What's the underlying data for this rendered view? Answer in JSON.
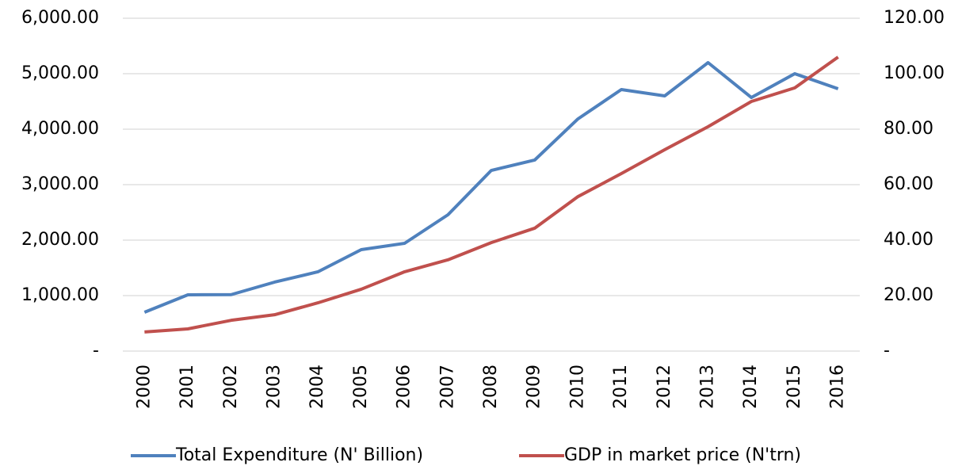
{
  "chart_data": {
    "type": "line",
    "categories": [
      "2000",
      "2001",
      "2002",
      "2003",
      "2004",
      "2005",
      "2006",
      "2007",
      "2008",
      "2009",
      "2010",
      "2011",
      "2012",
      "2013",
      "2014",
      "2015",
      "2016"
    ],
    "series": [
      {
        "name": "Total Expenditure (N' Billion)",
        "color": "#4f81bd",
        "values": [
          700,
          1014,
          1018,
          1243,
          1429,
          1829,
          1943,
          2457,
          3257,
          3443,
          4186,
          4714,
          4600,
          5200,
          4571,
          5000,
          4729
        ]
      },
      {
        "name": "GDP in market price (N'trn)",
        "color": "#c0504d",
        "axis": "y2",
        "values": [
          6.9,
          8.0,
          11.1,
          13.1,
          17.4,
          22.3,
          28.6,
          32.9,
          39.1,
          44.3,
          55.7,
          64.0,
          72.6,
          80.9,
          90.0,
          94.9,
          106.0
        ]
      }
    ],
    "ylim": [
      0,
      6000
    ],
    "yticks": [
      {
        "value": 0,
        "label": "-"
      },
      {
        "value": 1000,
        "label": "1,000.00"
      },
      {
        "value": 2000,
        "label": "2,000.00"
      },
      {
        "value": 3000,
        "label": "3,000.00"
      },
      {
        "value": 4000,
        "label": "4,000.00"
      },
      {
        "value": 5000,
        "label": "5,000.00"
      },
      {
        "value": 6000,
        "label": "6,000.00"
      }
    ],
    "y2lim": [
      0,
      120
    ],
    "y2ticks": [
      {
        "value": 0,
        "label": "-"
      },
      {
        "value": 20,
        "label": "20.00"
      },
      {
        "value": 40,
        "label": "40.00"
      },
      {
        "value": 60,
        "label": "60.00"
      },
      {
        "value": 80,
        "label": "80.00"
      },
      {
        "value": 100,
        "label": "100.00"
      },
      {
        "value": 120,
        "label": "120.00"
      }
    ],
    "grid": true,
    "legend": "bottom"
  }
}
